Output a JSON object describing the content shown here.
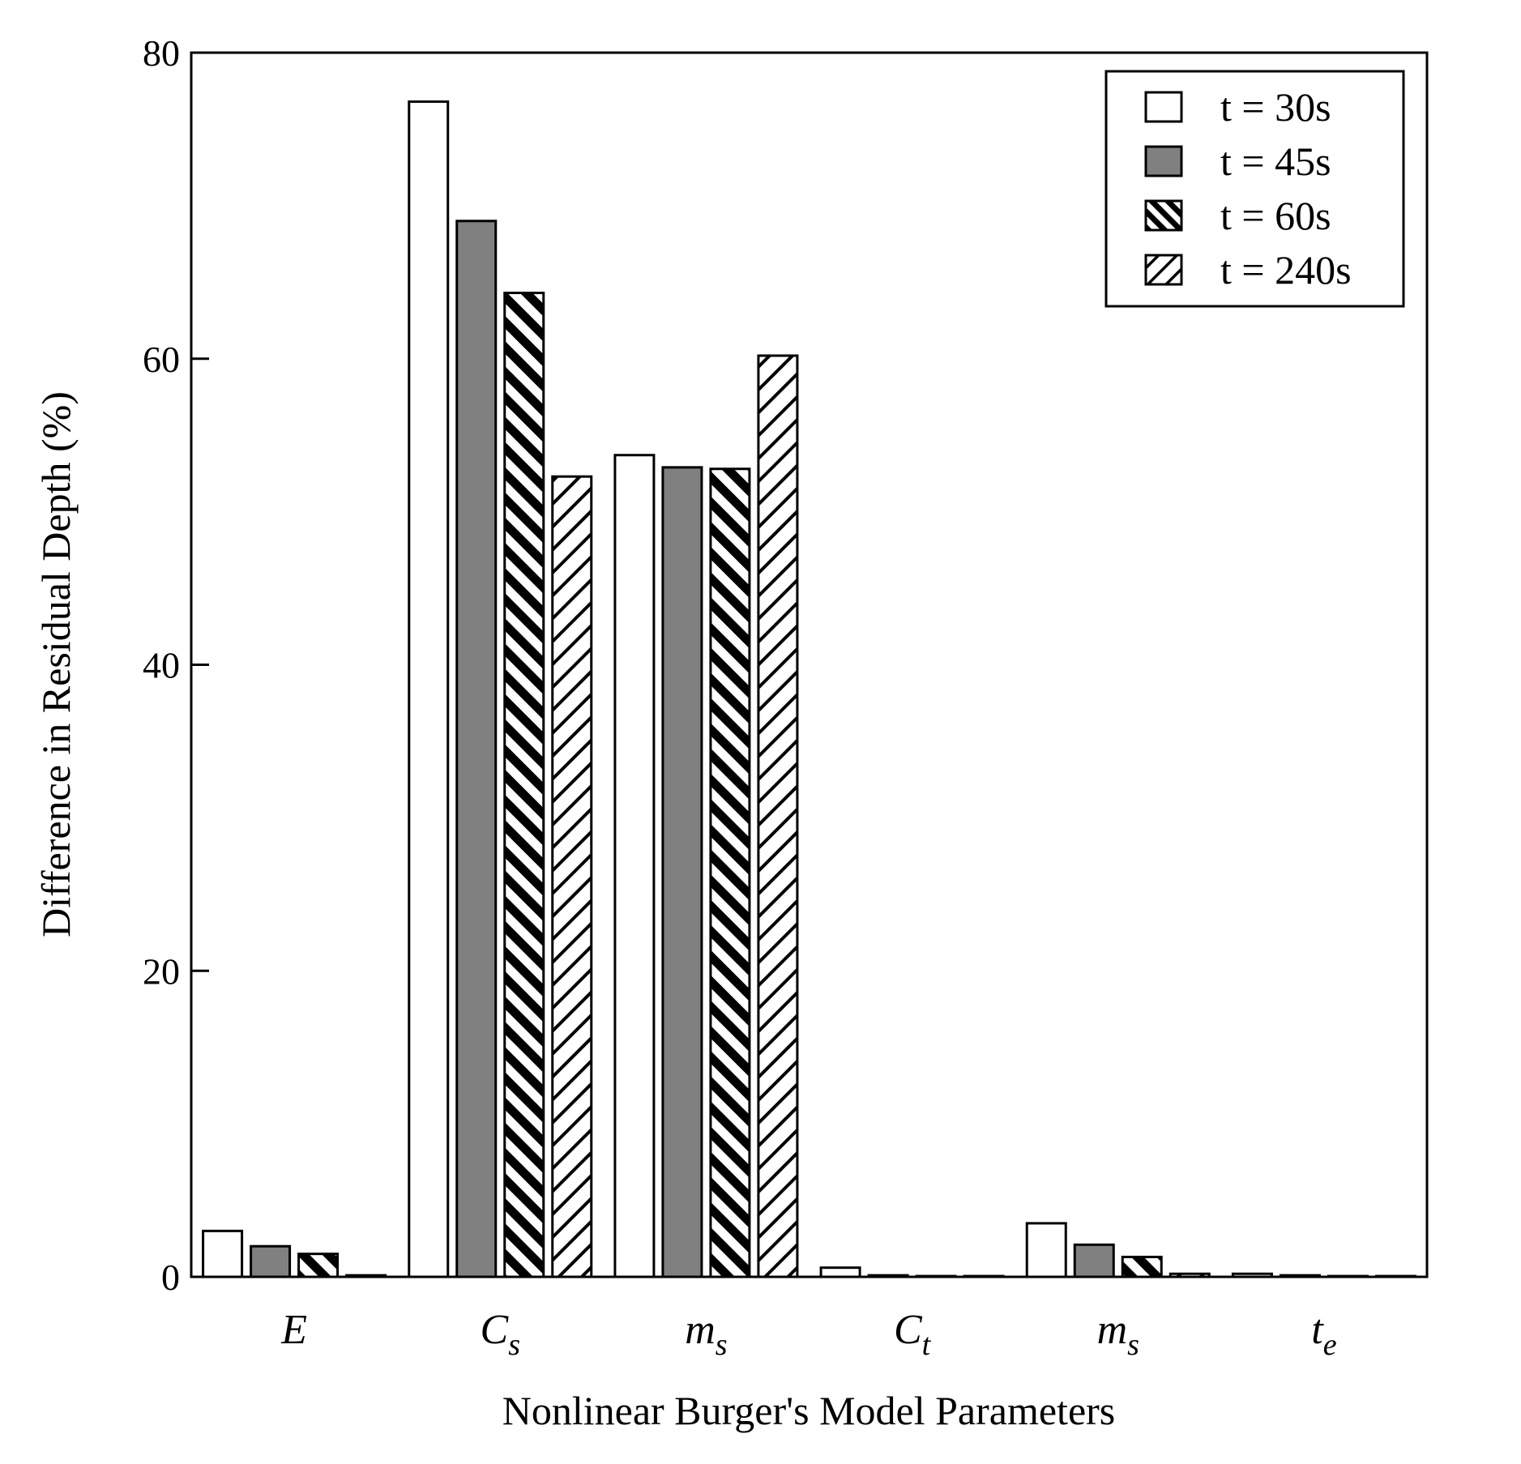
{
  "chart_data": {
    "type": "bar",
    "title": "",
    "xlabel": "Nonlinear Burger's Model Parameters",
    "ylabel": "Difference in Residual Depth (%)",
    "ylim": [
      0,
      80
    ],
    "yticks": [
      "0",
      "20",
      "40",
      "60",
      "80"
    ],
    "grid": false,
    "legend_position": "top-right",
    "categories": [
      {
        "main": "E",
        "sub": ""
      },
      {
        "main": "C",
        "sub": "s"
      },
      {
        "main": "m",
        "sub": "s"
      },
      {
        "main": "C",
        "sub": "t"
      },
      {
        "main": "m",
        "sub": "s"
      },
      {
        "main": "t",
        "sub": "e"
      }
    ],
    "series": [
      {
        "name": "t = 30s",
        "pattern": "white",
        "values": [
          3.0,
          76.8,
          53.7,
          0.6,
          3.5,
          0.2
        ]
      },
      {
        "name": "t = 45s",
        "pattern": "gray",
        "color": "#808080",
        "values": [
          2.0,
          69.0,
          52.9,
          0.1,
          2.1,
          0.1
        ]
      },
      {
        "name": "t = 60s",
        "pattern": "dense-hatch",
        "values": [
          1.5,
          64.3,
          52.8,
          0.05,
          1.3,
          0.05
        ]
      },
      {
        "name": "t = 240s",
        "pattern": "sparse-hatch",
        "values": [
          0.1,
          52.3,
          60.2,
          0.05,
          0.2,
          0.05
        ]
      }
    ]
  }
}
